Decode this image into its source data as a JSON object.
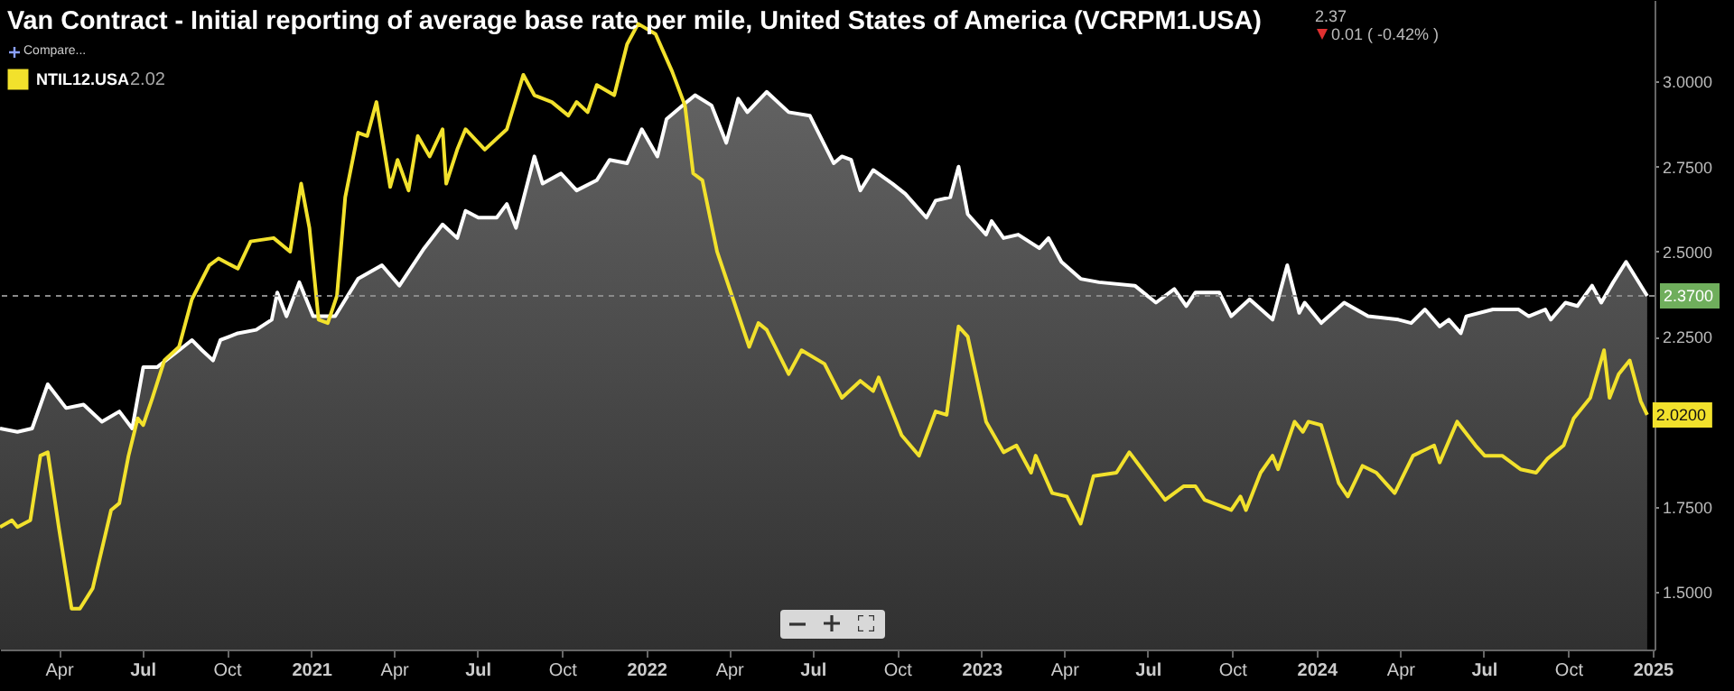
{
  "chart_data": {
    "type": "line",
    "title": "Van Contract - Initial reporting of average base rate per mile, United States of America (VCRPM1.USA)",
    "annotations": [
      "2.37",
      "0.01 ( -0.42% )",
      "Compare...",
      "2.02",
      {
        "text": "2.0200",
        "x": "2024-12-26",
        "y": 2.02
      }
    ],
    "series": [
      {
        "type": "area",
        "color": "#ffffff",
        "x": [
          "2020-01-28",
          "2020-02-16",
          "2020-03-03",
          "2020-03-20",
          "2020-04-09",
          "2020-04-28",
          "2020-05-18",
          "2020-06-06",
          "2020-06-20",
          "2020-07-02",
          "2020-07-17",
          "2020-08-10",
          "2020-08-24",
          "2020-09-04",
          "2020-09-16",
          "2020-09-24",
          "2020-10-13",
          "2020-11-02",
          "2020-11-19",
          "2020-11-25",
          "2020-12-05",
          "2020-12-19",
          "2021-01-03",
          "2021-01-27",
          "2021-02-21",
          "2021-03-19",
          "2021-04-07",
          "2021-05-04",
          "2021-05-24",
          "2021-06-09",
          "2021-06-18",
          "2021-07-02",
          "2021-07-22",
          "2021-08-02",
          "2021-08-12",
          "2021-09-01",
          "2021-09-10",
          "2021-09-30",
          "2021-10-17",
          "2021-11-08",
          "2021-11-22",
          "2021-12-11",
          "2021-12-27",
          "2022-01-13",
          "2022-01-23",
          "2022-02-14",
          "2022-02-23",
          "2022-03-13",
          "2022-03-29",
          "2022-04-11",
          "2022-04-21",
          "2022-05-12",
          "2022-06-05",
          "2022-06-28",
          "2022-07-24",
          "2022-08-02",
          "2022-08-12",
          "2022-08-22",
          "2022-09-05",
          "2022-09-26",
          "2022-10-10",
          "2022-11-02",
          "2022-11-12",
          "2022-11-28",
          "2022-12-07",
          "2022-12-17",
          "2023-01-06",
          "2023-01-12",
          "2023-01-25",
          "2023-02-10",
          "2023-03-05",
          "2023-03-15",
          "2023-03-29",
          "2023-04-19",
          "2023-05-09",
          "2023-06-17",
          "2023-07-10",
          "2023-07-30",
          "2023-08-12",
          "2023-08-22",
          "2023-09-17",
          "2023-09-30",
          "2023-10-20",
          "2023-11-14",
          "2023-11-30",
          "2023-12-13",
          "2023-12-19",
          "2024-01-06",
          "2024-01-31",
          "2024-02-26",
          "2024-03-30",
          "2024-04-13",
          "2024-04-28",
          "2024-05-14",
          "2024-05-24",
          "2024-06-06",
          "2024-06-12",
          "2024-07-11",
          "2024-08-08",
          "2024-08-19",
          "2024-09-06",
          "2024-09-12",
          "2024-09-28",
          "2024-10-11",
          "2024-10-27",
          "2024-11-06",
          "2024-11-19",
          "2024-12-03",
          "2024-12-26"
        ],
        "values": [
          1.98,
          1.97,
          1.98,
          2.11,
          2.04,
          2.05,
          2.0,
          2.03,
          1.98,
          2.16,
          2.16,
          2.21,
          2.24,
          2.21,
          2.18,
          2.24,
          2.26,
          2.27,
          2.3,
          2.38,
          2.31,
          2.41,
          2.31,
          2.31,
          2.42,
          2.46,
          2.4,
          2.51,
          2.58,
          2.54,
          2.62,
          2.6,
          2.6,
          2.64,
          2.57,
          2.78,
          2.7,
          2.73,
          2.68,
          2.71,
          2.77,
          2.76,
          2.86,
          2.78,
          2.89,
          2.94,
          2.96,
          2.93,
          2.82,
          2.95,
          2.91,
          2.97,
          2.91,
          2.9,
          2.76,
          2.78,
          2.77,
          2.68,
          2.74,
          2.7,
          2.67,
          2.6,
          2.65,
          2.66,
          2.75,
          2.61,
          2.55,
          2.59,
          2.54,
          2.55,
          2.51,
          2.54,
          2.47,
          2.42,
          2.41,
          2.4,
          2.35,
          2.39,
          2.34,
          2.38,
          2.38,
          2.31,
          2.36,
          2.3,
          2.46,
          2.32,
          2.35,
          2.29,
          2.35,
          2.31,
          2.3,
          2.29,
          2.33,
          2.28,
          2.3,
          2.26,
          2.31,
          2.33,
          2.33,
          2.31,
          2.33,
          2.3,
          2.35,
          2.34,
          2.4,
          2.35,
          2.41,
          2.47,
          2.37
        ]
      },
      {
        "name": "NTIL12.USA",
        "color": "#f2e12c",
        "x": [
          "2020-01-28",
          "2020-02-10",
          "2020-02-16",
          "2020-03-01",
          "2020-03-12",
          "2020-03-20",
          "2020-04-01",
          "2020-04-15",
          "2020-04-24",
          "2020-05-08",
          "2020-05-28",
          "2020-06-06",
          "2020-06-16",
          "2020-06-26",
          "2020-07-02",
          "2020-07-12",
          "2020-07-25",
          "2020-08-10",
          "2020-08-24",
          "2020-09-12",
          "2020-09-22",
          "2020-10-13",
          "2020-10-27",
          "2020-11-21",
          "2020-12-09",
          "2020-12-21",
          "2020-12-30",
          "2021-01-09",
          "2021-01-19",
          "2021-01-29",
          "2021-02-07",
          "2021-02-21",
          "2021-03-03",
          "2021-03-13",
          "2021-03-28",
          "2021-04-05",
          "2021-04-17",
          "2021-04-27",
          "2021-05-10",
          "2021-05-24",
          "2021-05-28",
          "2021-06-09",
          "2021-06-18",
          "2021-07-09",
          "2021-08-02",
          "2021-08-20",
          "2021-09-01",
          "2021-09-20",
          "2021-10-08",
          "2021-10-17",
          "2021-10-29",
          "2021-11-08",
          "2021-11-27",
          "2021-12-11",
          "2021-12-23",
          "2022-01-11",
          "2022-01-29",
          "2022-02-12",
          "2022-02-21",
          "2022-03-03",
          "2022-03-19",
          "2022-04-23",
          "2022-05-03",
          "2022-05-12",
          "2022-06-05",
          "2022-06-19",
          "2022-07-14",
          "2022-08-02",
          "2022-08-22",
          "2022-09-05",
          "2022-09-11",
          "2022-10-06",
          "2022-10-25",
          "2022-11-12",
          "2022-11-24",
          "2022-12-07",
          "2022-12-17",
          "2023-01-06",
          "2023-01-25",
          "2023-02-08",
          "2023-02-24",
          "2023-03-01",
          "2023-03-19",
          "2023-04-04",
          "2023-04-19",
          "2023-05-03",
          "2023-05-28",
          "2023-06-11",
          "2023-07-06",
          "2023-07-20",
          "2023-08-09",
          "2023-08-22",
          "2023-09-01",
          "2023-09-30",
          "2023-10-10",
          "2023-10-16",
          "2023-11-01",
          "2023-11-14",
          "2023-11-20",
          "2023-12-08",
          "2023-12-17",
          "2023-12-23",
          "2024-01-06",
          "2024-01-25",
          "2024-02-04",
          "2024-02-20",
          "2024-03-06",
          "2024-03-16",
          "2024-03-26",
          "2024-04-15",
          "2024-05-08",
          "2024-05-14",
          "2024-06-02",
          "2024-06-22",
          "2024-07-02",
          "2024-07-21",
          "2024-08-10",
          "2024-08-27",
          "2024-09-08",
          "2024-09-26",
          "2024-10-07",
          "2024-10-25",
          "2024-11-09",
          "2024-11-15",
          "2024-11-25",
          "2024-12-07",
          "2024-12-19",
          "2024-12-26"
        ],
        "values": [
          1.69,
          1.71,
          1.69,
          1.71,
          1.9,
          1.91,
          1.69,
          1.45,
          1.45,
          1.51,
          1.74,
          1.76,
          1.9,
          2.01,
          1.99,
          2.07,
          2.18,
          2.22,
          2.36,
          2.46,
          2.48,
          2.45,
          2.53,
          2.54,
          2.5,
          2.7,
          2.57,
          2.3,
          2.29,
          2.37,
          2.66,
          2.85,
          2.84,
          2.94,
          2.69,
          2.77,
          2.68,
          2.84,
          2.78,
          2.86,
          2.7,
          2.8,
          2.86,
          2.8,
          2.86,
          3.02,
          2.96,
          2.94,
          2.9,
          2.94,
          2.91,
          2.99,
          2.96,
          3.11,
          3.17,
          3.14,
          3.03,
          2.93,
          2.73,
          2.71,
          2.5,
          2.22,
          2.29,
          2.27,
          2.14,
          2.21,
          2.17,
          2.07,
          2.12,
          2.09,
          2.13,
          1.96,
          1.9,
          2.03,
          2.02,
          2.28,
          2.25,
          2.0,
          1.91,
          1.93,
          1.85,
          1.9,
          1.79,
          1.78,
          1.7,
          1.84,
          1.85,
          1.91,
          1.82,
          1.77,
          1.81,
          1.81,
          1.77,
          1.74,
          1.78,
          1.74,
          1.85,
          1.9,
          1.86,
          2.0,
          1.97,
          2.0,
          1.99,
          1.82,
          1.78,
          1.87,
          1.85,
          1.82,
          1.79,
          1.9,
          1.93,
          1.88,
          2.0,
          1.93,
          1.9,
          1.9,
          1.86,
          1.85,
          1.89,
          1.93,
          2.01,
          2.07,
          2.21,
          2.07,
          2.14,
          2.18,
          2.06,
          2.02
        ]
      }
    ],
    "xlim": [
      "2020-01-28",
      "2025-01-03"
    ],
    "xticks": [
      {
        "value": "2020-04",
        "label": "Apr"
      },
      {
        "value": "2020-07",
        "label": "Jul"
      },
      {
        "value": "2020-10",
        "label": "Oct"
      },
      {
        "value": "2021-01",
        "label": "2021"
      },
      {
        "value": "2021-04",
        "label": "Apr"
      },
      {
        "value": "2021-07",
        "label": "Jul"
      },
      {
        "value": "2021-10",
        "label": "Oct"
      },
      {
        "value": "2022-01",
        "label": "2022"
      },
      {
        "value": "2022-04",
        "label": "Apr"
      },
      {
        "value": "2022-07",
        "label": "Jul"
      },
      {
        "value": "2022-10",
        "label": "Oct"
      },
      {
        "value": "2023-01",
        "label": "2023"
      },
      {
        "value": "2023-04",
        "label": "Apr"
      },
      {
        "value": "2023-07",
        "label": "Jul"
      },
      {
        "value": "2023-10",
        "label": "Oct"
      },
      {
        "value": "2024-01",
        "label": "2024"
      },
      {
        "value": "2024-04",
        "label": "Apr"
      },
      {
        "value": "2024-07",
        "label": "Jul"
      },
      {
        "value": "2024-10",
        "label": "Oct"
      },
      {
        "value": "2025-01",
        "label": "2025"
      }
    ],
    "ylim": [
      1.33,
      3.24
    ],
    "yticks": [
      {
        "value": 1.5,
        "label": "1.5000"
      },
      {
        "value": 1.75,
        "label": "1.7500"
      },
      {
        "value": 2.25,
        "label": "2.2500"
      },
      {
        "value": 2.5,
        "label": "2.5000"
      },
      {
        "value": 2.75,
        "label": "2.7500"
      },
      {
        "value": 3,
        "label": "3.0000"
      }
    ],
    "ref_lines": [
      {
        "axis": "y",
        "value": 2.37,
        "label": "2.3700",
        "line_style": "dashed"
      }
    ],
    "legend": "top left"
  }
}
